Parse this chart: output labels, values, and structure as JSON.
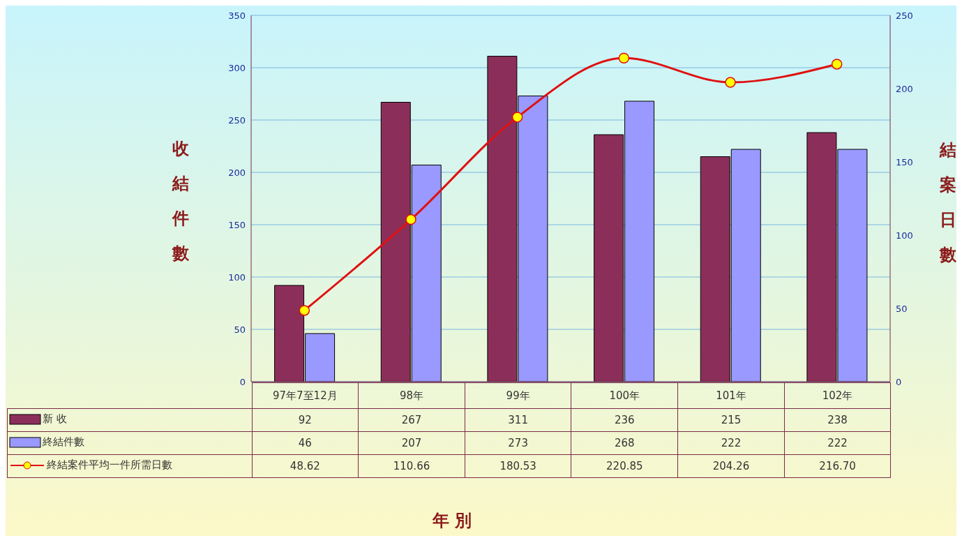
{
  "chart_data": {
    "type": "bar",
    "annotations": [
      "年 別"
    ],
    "ylabel": "收結件數",
    "y2label": "結案日數",
    "categories": [
      "97年7至12月",
      "98年",
      "99年",
      "100年",
      "101年",
      "102年"
    ],
    "series": [
      {
        "name": "新 收",
        "color": "#8b2f5a",
        "values": [
          92,
          267,
          311,
          236,
          215,
          238
        ]
      },
      {
        "name": "終結件數",
        "color": "#9999ff",
        "values": [
          46,
          207,
          273,
          268,
          222,
          222
        ]
      },
      {
        "name": "終結案件平均一件所需日數",
        "type": "line",
        "axis": "y2",
        "color": "#e01010",
        "values": [
          48.62,
          110.66,
          180.53,
          220.85,
          204.26,
          216.7
        ],
        "value_labels": [
          "48.62",
          "110.66",
          "180.53",
          "220.85",
          "204.26",
          "216.70"
        ]
      }
    ],
    "ylim": [
      0,
      350
    ],
    "yticks": [
      0,
      50,
      100,
      150,
      200,
      250,
      300,
      350
    ],
    "y2lim": [
      0,
      250
    ],
    "y2ticks": [
      0,
      50,
      100,
      150,
      200,
      250
    ],
    "grid": "y",
    "legend": "bottom",
    "data_labels": true,
    "marker": "circle",
    "line_style": "solid"
  }
}
